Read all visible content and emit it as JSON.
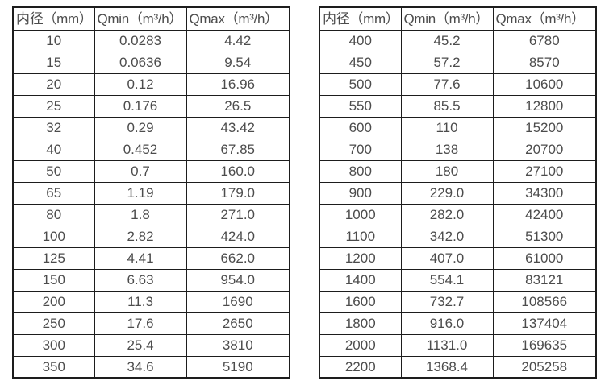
{
  "colors": {
    "background": "#ffffff",
    "border": "#1d1d1d",
    "text": "#4c4c4c"
  },
  "tables": [
    {
      "name": "flow-rates-dn10-350",
      "headers": [
        "内径（mm）",
        "Qmin（m³/h）",
        "Qmax（m³/h）"
      ],
      "rows": [
        [
          "10",
          "0.0283",
          "4.42"
        ],
        [
          "15",
          "0.0636",
          "9.54"
        ],
        [
          "20",
          "0.12",
          "16.96"
        ],
        [
          "25",
          "0.176",
          "26.5"
        ],
        [
          "32",
          "0.29",
          "43.42"
        ],
        [
          "40",
          "0.452",
          "67.85"
        ],
        [
          "50",
          "0.7",
          "160.0"
        ],
        [
          "65",
          "1.19",
          "179.0"
        ],
        [
          "80",
          "1.8",
          "271.0"
        ],
        [
          "100",
          "2.82",
          "424.0"
        ],
        [
          "125",
          "4.41",
          "662.0"
        ],
        [
          "150",
          "6.63",
          "954.0"
        ],
        [
          "200",
          "11.3",
          "1690"
        ],
        [
          "250",
          "17.6",
          "2650"
        ],
        [
          "300",
          "25.4",
          "3810"
        ],
        [
          "350",
          "34.6",
          "5190"
        ]
      ]
    },
    {
      "name": "flow-rates-dn400-2200",
      "headers": [
        "内径（mm）",
        "Qmin（m³/h）",
        "Qmax（m³/h）"
      ],
      "rows": [
        [
          "400",
          "45.2",
          "6780"
        ],
        [
          "450",
          "57.2",
          "8570"
        ],
        [
          "500",
          "77.6",
          "10600"
        ],
        [
          "550",
          "85.5",
          "12800"
        ],
        [
          "600",
          "110",
          "15200"
        ],
        [
          "700",
          "138",
          "20700"
        ],
        [
          "800",
          "180",
          "27100"
        ],
        [
          "900",
          "229.0",
          "34300"
        ],
        [
          "1000",
          "282.0",
          "42400"
        ],
        [
          "1100",
          "342.0",
          "51300"
        ],
        [
          "1200",
          "407.0",
          "61000"
        ],
        [
          "1400",
          "554.1",
          "83121"
        ],
        [
          "1600",
          "732.7",
          "108566"
        ],
        [
          "1800",
          "916.0",
          "137404"
        ],
        [
          "2000",
          "1131.0",
          "169635"
        ],
        [
          "2200",
          "1368.4",
          "205258"
        ]
      ]
    }
  ]
}
